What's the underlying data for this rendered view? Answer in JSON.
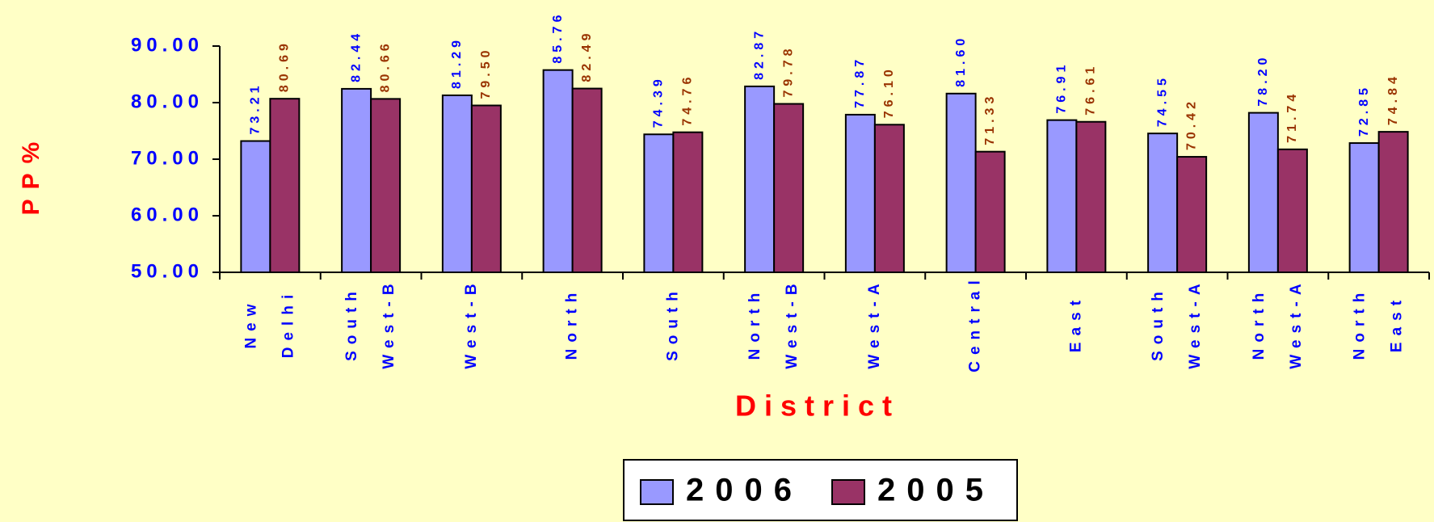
{
  "chart_data": {
    "type": "bar",
    "y_label": "PP%",
    "x_label": "District",
    "categories": [
      [
        "New",
        "Delhi"
      ],
      [
        "South",
        "West-B"
      ],
      [
        "West-B"
      ],
      [
        "North"
      ],
      [
        "South"
      ],
      [
        "North",
        "West-B"
      ],
      [
        "West-A"
      ],
      [
        "Central"
      ],
      [
        "East"
      ],
      [
        "South",
        "West-A"
      ],
      [
        "North",
        "West-A"
      ],
      [
        "North",
        "East"
      ]
    ],
    "series": [
      {
        "name": "2006",
        "color": "#9999ff",
        "label_color": "#0000ff",
        "values": [
          73.21,
          82.44,
          81.29,
          85.76,
          74.39,
          82.87,
          77.87,
          81.6,
          76.91,
          74.55,
          78.2,
          72.85
        ],
        "value_labels": [
          "73.21",
          "82.44",
          "81.29",
          "85.76",
          "74.39",
          "82.87",
          "77.87",
          "81.60",
          "76.91",
          "74.55",
          "78.20",
          "72.85"
        ]
      },
      {
        "name": "2005",
        "color": "#993366",
        "label_color": "#993300",
        "values": [
          80.69,
          80.66,
          79.5,
          82.49,
          74.76,
          79.78,
          76.1,
          71.33,
          76.61,
          70.42,
          71.74,
          74.84
        ],
        "value_labels": [
          "80.69",
          "80.66",
          "79.50",
          "82.49",
          "74.76",
          "79.78",
          "76.10",
          "71.33",
          "76.61",
          "70.42",
          "71.74",
          "74.84"
        ]
      }
    ],
    "ylim": [
      50,
      90
    ],
    "yticks": [
      {
        "value": 50,
        "label": "50.00"
      },
      {
        "value": 60,
        "label": "60.00"
      },
      {
        "value": 70,
        "label": "70.00"
      },
      {
        "value": 80,
        "label": "80.00"
      },
      {
        "value": 90,
        "label": "90.00"
      }
    ],
    "legend": "bottom"
  }
}
